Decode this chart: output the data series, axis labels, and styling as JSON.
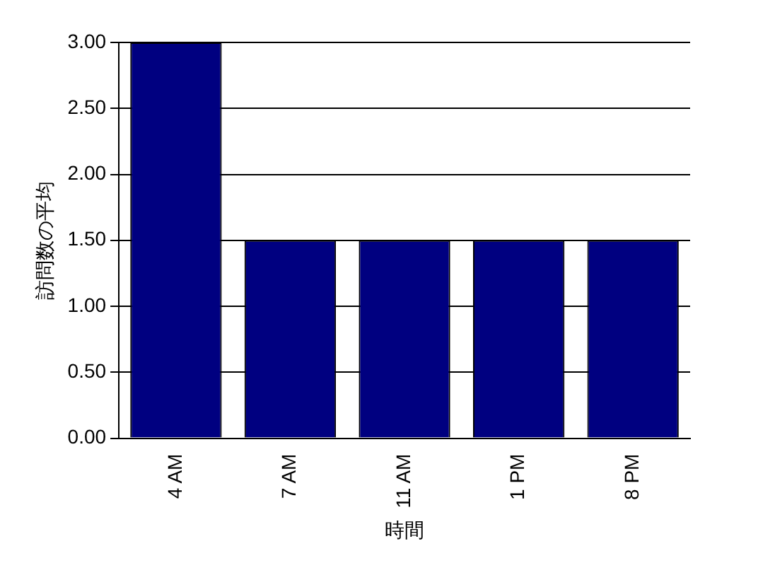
{
  "chart_data": {
    "type": "bar",
    "xlabel": "時間",
    "ylabel": "訪問数の平均",
    "categories": [
      "4 AM",
      "7 AM",
      "11 AM",
      "1 PM",
      "8 PM"
    ],
    "values": [
      3,
      1.5,
      1.5,
      1.5,
      1.5
    ],
    "color": "#000080",
    "ylim": [
      0,
      3
    ],
    "yticks": [
      {
        "value": 0,
        "label": "0.00"
      },
      {
        "value": 0.5,
        "label": "0.50"
      },
      {
        "value": 1,
        "label": "1.00"
      },
      {
        "value": 1.5,
        "label": "1.50"
      },
      {
        "value": 2,
        "label": "2.00"
      },
      {
        "value": 2.5,
        "label": "2.50"
      },
      {
        "value": 3,
        "label": "3.00"
      }
    ],
    "grid": "y",
    "legend": false
  }
}
